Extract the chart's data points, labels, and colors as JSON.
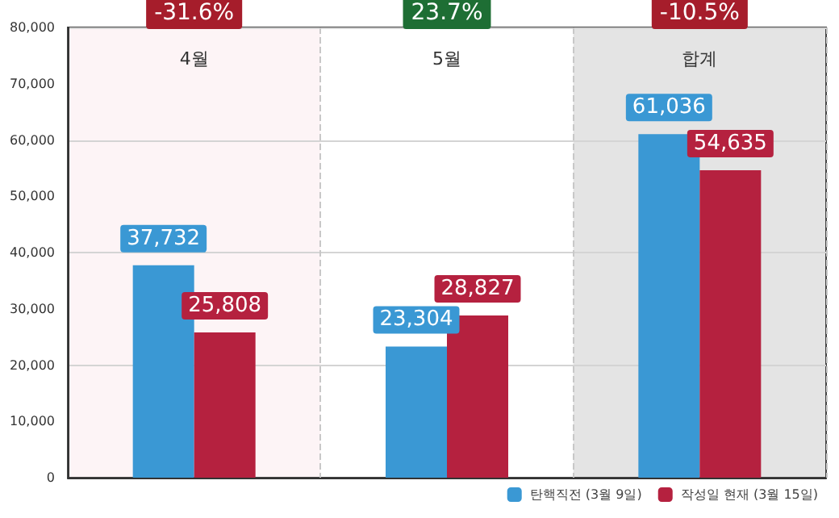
{
  "chart_data": {
    "type": "bar",
    "categories": [
      "4월",
      "5월",
      "합계"
    ],
    "series": [
      {
        "name": "탄핵직전 (3월 9일)",
        "color": "#3a98d4",
        "values": [
          37732,
          23304,
          61036
        ],
        "value_labels": [
          "37,732",
          "23,304",
          "61,036"
        ]
      },
      {
        "name": "작성일 현재 (3월 15일)",
        "color": "#b5213f",
        "values": [
          25808,
          28827,
          54635
        ],
        "value_labels": [
          "25,808",
          "28,827",
          "54,635"
        ]
      }
    ],
    "ylim": [
      0,
      80000
    ],
    "yticks": [
      0,
      {
        "value": 10000,
        "label": "10,000"
      },
      {
        "value": 20000,
        "label": "20,000"
      },
      {
        "value": 30000,
        "label": "30,000"
      },
      {
        "value": 40000,
        "label": "40,000"
      },
      {
        "value": 50000,
        "label": "50,000"
      },
      {
        "value": 60000,
        "label": "60,000"
      },
      {
        "value": 70000,
        "label": "70,000"
      },
      {
        "value": 80000,
        "label": "80,000"
      }
    ],
    "grid": true,
    "legend": "bottom right",
    "bands": [
      {
        "axis": "x",
        "from": "4월",
        "to": "4월",
        "color": "#fdf4f6"
      },
      {
        "axis": "x",
        "from": "합계",
        "to": "합계",
        "color": "#e4e4e4"
      }
    ],
    "annotations": [
      "-31.6%",
      "23.7%",
      "-10.5%"
    ]
  }
}
